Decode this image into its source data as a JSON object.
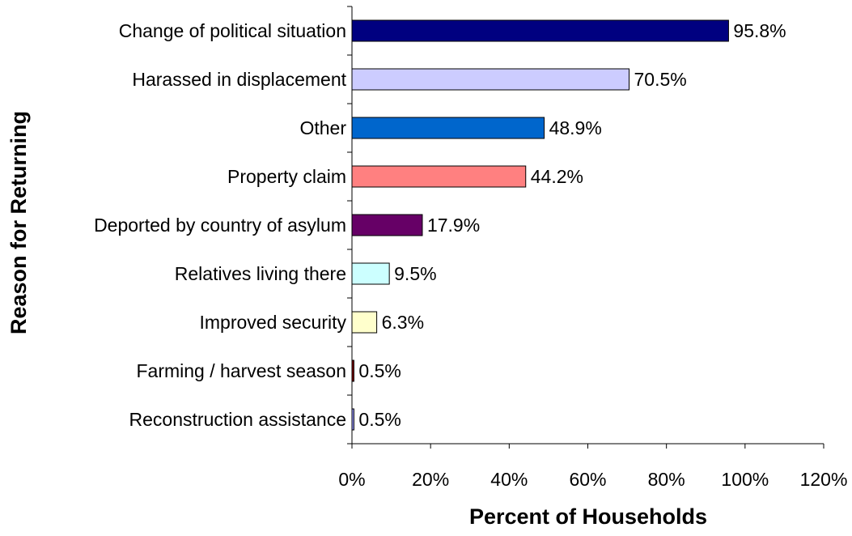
{
  "chart_data": {
    "type": "bar",
    "orientation": "horizontal",
    "categories": [
      "Change of political situation",
      "Harassed in displacement",
      "Other",
      "Property claim",
      "Deported by country of asylum",
      "Relatives living there",
      "Improved security",
      "Farming / harvest season",
      "Reconstruction assistance"
    ],
    "values": [
      95.8,
      70.5,
      48.9,
      44.2,
      17.9,
      9.5,
      6.3,
      0.5,
      0.5
    ],
    "value_labels": [
      "95.8%",
      "70.5%",
      "48.9%",
      "44.2%",
      "17.9%",
      "9.5%",
      "6.3%",
      "0.5%",
      "0.5%"
    ],
    "bar_colors": [
      "#000080",
      "#CCCCFF",
      "#0066CC",
      "#FF8080",
      "#660066",
      "#CCFFFF",
      "#FFFFCC",
      "#800000",
      "#9999FF"
    ],
    "xlim": [
      0,
      120
    ],
    "xticks": [
      0,
      20,
      40,
      60,
      80,
      100,
      120
    ],
    "xtick_labels": [
      "0%",
      "20%",
      "40%",
      "60%",
      "80%",
      "100%",
      "120%"
    ],
    "xlabel": "Percent of Households",
    "ylabel": "Reason for Returning",
    "title": "",
    "grid": false,
    "legend": "none"
  }
}
